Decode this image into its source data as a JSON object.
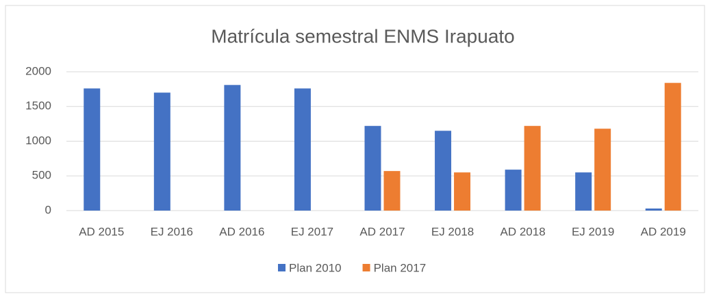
{
  "chart_data": {
    "type": "bar",
    "title": "Matrícula semestral ENMS Irapuato",
    "categories": [
      "AD 2015",
      "EJ 2016",
      "AD 2016",
      "EJ 2017",
      "AD 2017",
      "EJ 2018",
      "AD 2018",
      "EJ 2019",
      "AD 2019"
    ],
    "series": [
      {
        "name": "Plan 2010",
        "color": "#4472c4",
        "values": [
          1760,
          1700,
          1810,
          1760,
          1220,
          1150,
          590,
          550,
          30
        ]
      },
      {
        "name": "Plan 2017",
        "color": "#ed7d31",
        "values": [
          null,
          null,
          null,
          null,
          570,
          550,
          1220,
          1180,
          1840
        ]
      }
    ],
    "ylim": [
      0,
      2000
    ],
    "yticks": [
      0,
      500,
      1000,
      1500,
      2000
    ],
    "grid": true,
    "legend": "bottom"
  }
}
